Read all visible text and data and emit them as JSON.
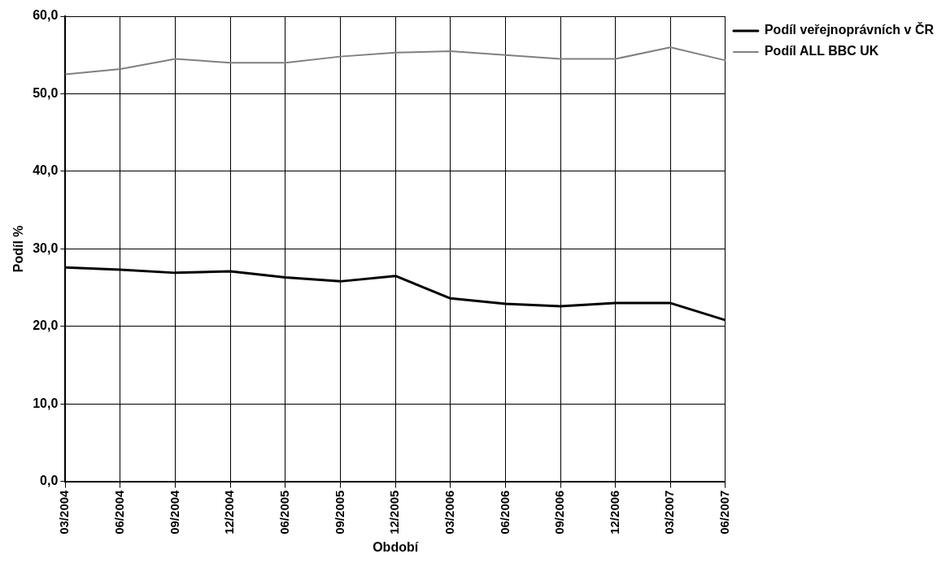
{
  "chart_data": {
    "type": "line",
    "xlabel": "Období",
    "ylabel": "Podíl %",
    "categories": [
      "03/2004",
      "06/2004",
      "09/2004",
      "12/2004",
      "06/2005",
      "09/2005",
      "12/2005",
      "03/2006",
      "06/2006",
      "09/2006",
      "12/2006",
      "03/2007",
      "06/2007"
    ],
    "series": [
      {
        "name": "Podíl veřejnoprávních v ČR",
        "color": "#000000",
        "values": [
          27.6,
          27.3,
          26.9,
          27.1,
          26.3,
          25.8,
          26.5,
          23.6,
          22.9,
          22.6,
          23.0,
          23.0,
          20.8
        ]
      },
      {
        "name": "Podíl ALL BBC UK",
        "color": "#808080",
        "values": [
          52.5,
          53.2,
          54.5,
          54.0,
          54.0,
          54.8,
          55.3,
          55.5,
          55.0,
          54.5,
          54.5,
          56.0,
          54.3
        ]
      }
    ],
    "ylim": [
      0,
      60
    ],
    "yticks": [
      {
        "value": 0,
        "label": "0,0"
      },
      {
        "value": 10,
        "label": "10,0"
      },
      {
        "value": 20,
        "label": "20,0"
      },
      {
        "value": 30,
        "label": "30,0"
      },
      {
        "value": 40,
        "label": "40,0"
      },
      {
        "value": 50,
        "label": "50,0"
      },
      {
        "value": 60,
        "label": "60,0"
      }
    ],
    "grid": true,
    "legend": "top right",
    "marker": "none",
    "line_style": "solid"
  }
}
